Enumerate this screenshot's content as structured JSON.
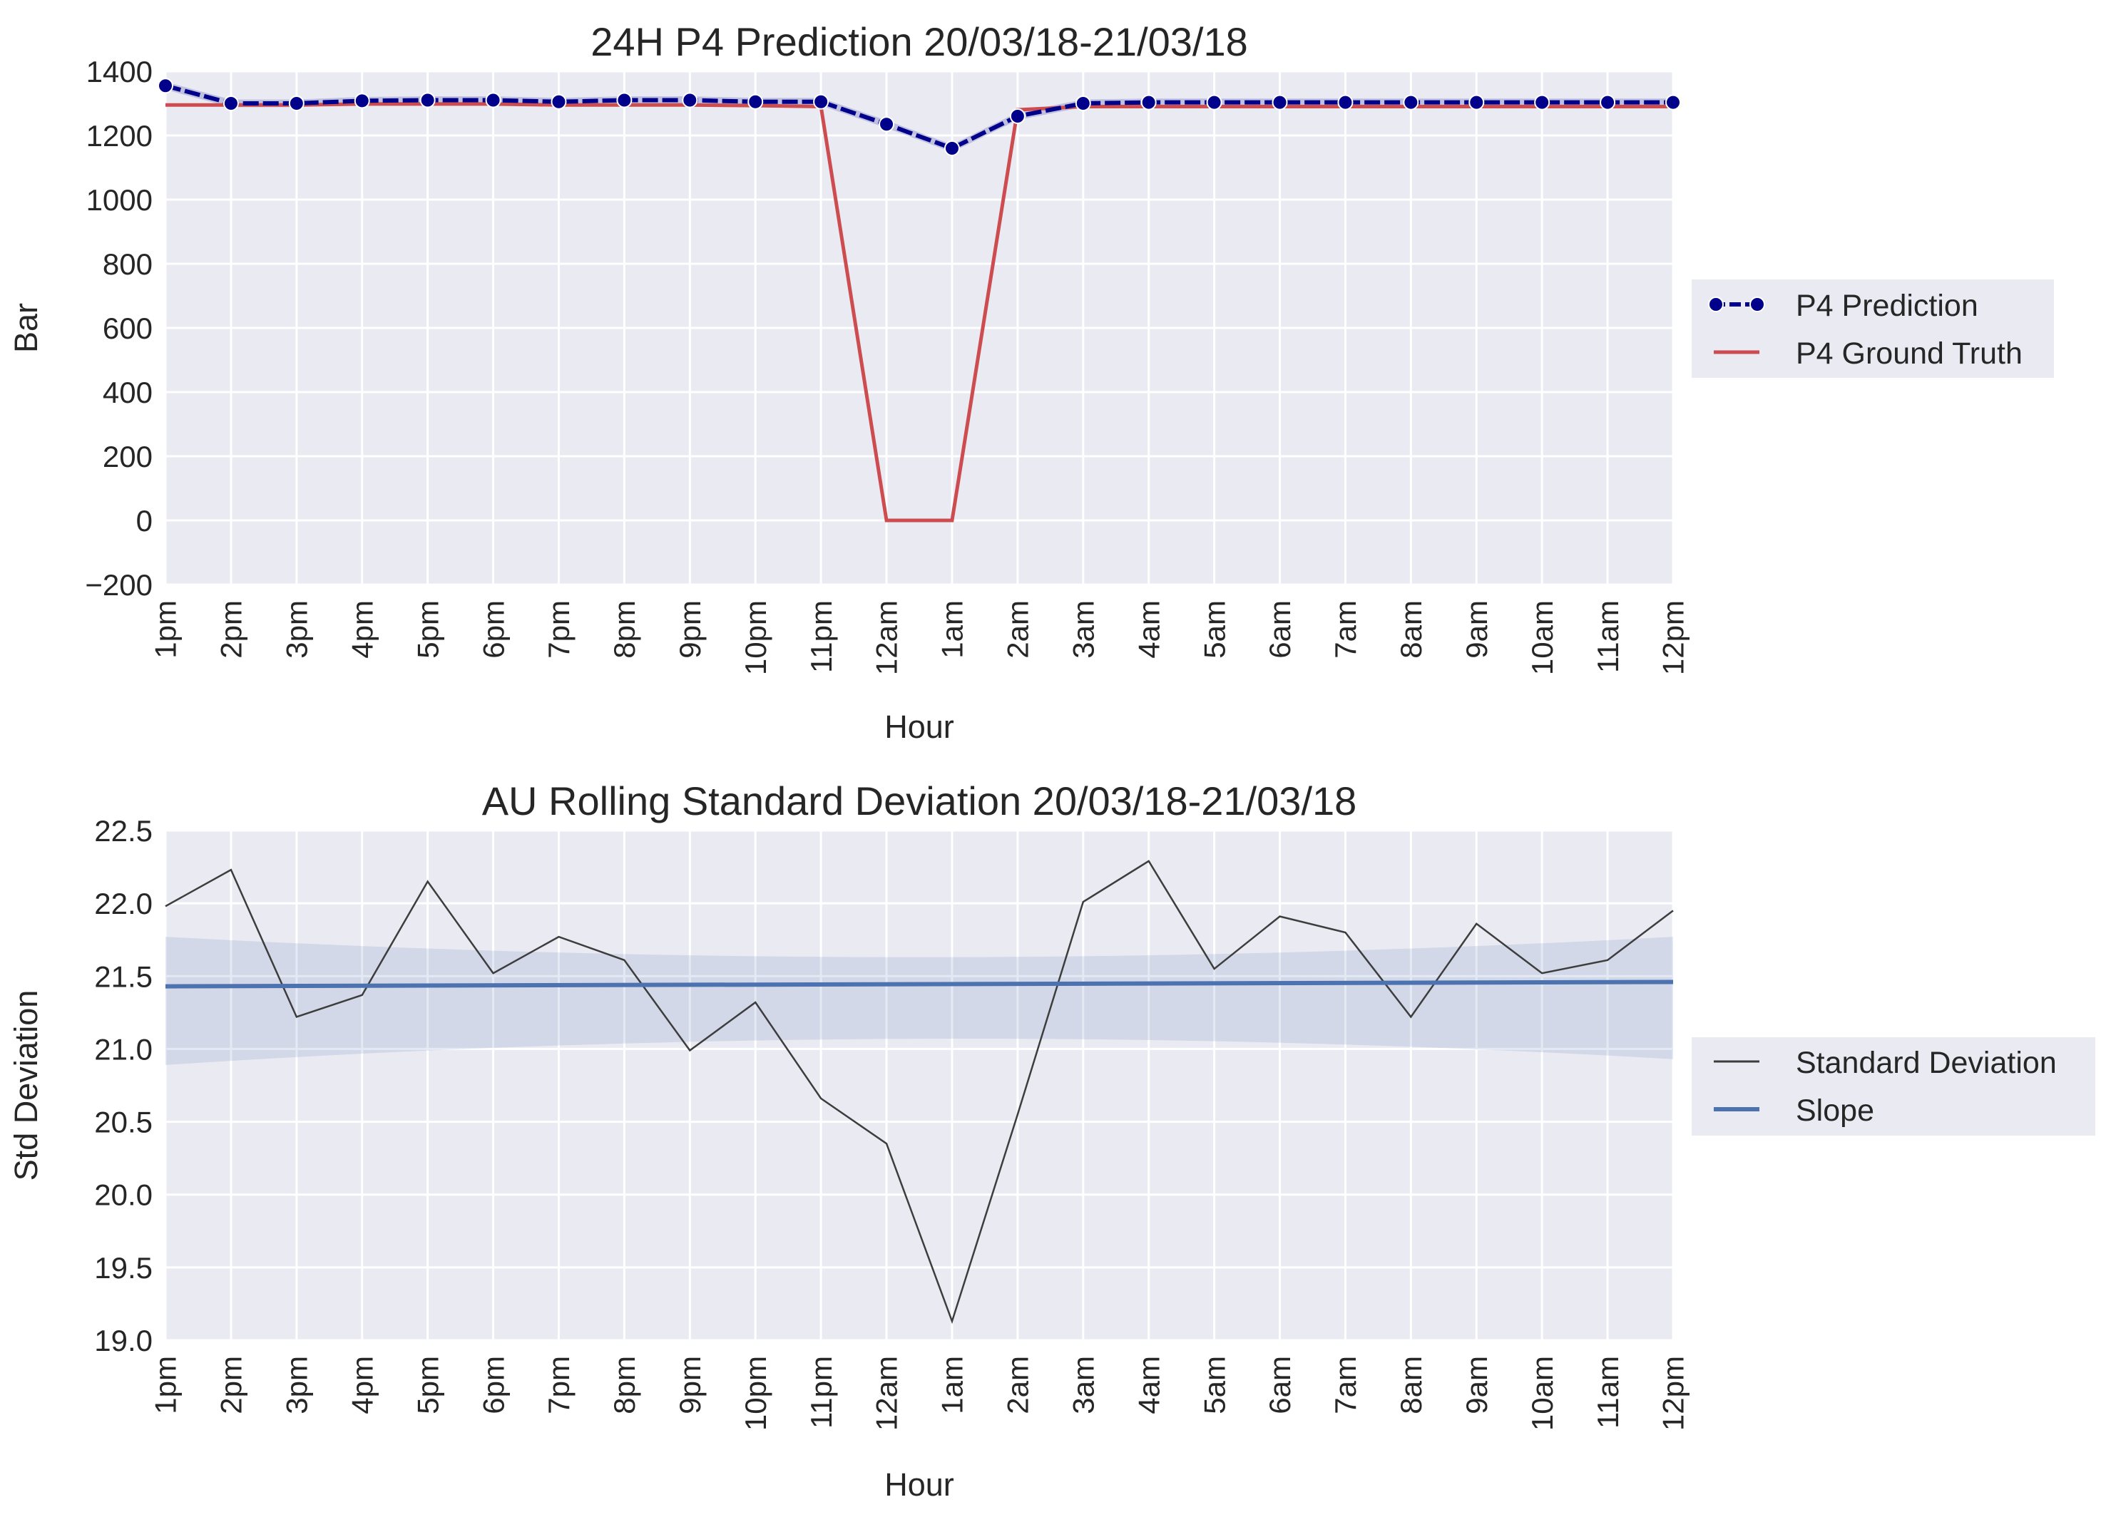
{
  "chart_data": [
    {
      "type": "line",
      "title": "24H P4 Prediction 20/03/18-21/03/18",
      "xlabel": "Hour",
      "ylabel": "Bar",
      "ylim": [
        -200,
        1400
      ],
      "yticks": [
        -200,
        0,
        200,
        400,
        600,
        800,
        1000,
        1200,
        1400
      ],
      "ytick_labels": [
        "−200",
        "0",
        "200",
        "400",
        "600",
        "800",
        "1000",
        "1200",
        "1400"
      ],
      "categories": [
        "1pm",
        "2pm",
        "3pm",
        "4pm",
        "5pm",
        "6pm",
        "7pm",
        "8pm",
        "9pm",
        "10pm",
        "11pm",
        "12am",
        "1am",
        "2am",
        "3am",
        "4am",
        "5am",
        "6am",
        "7am",
        "8am",
        "9am",
        "10am",
        "11am",
        "12pm"
      ],
      "grid": true,
      "legend_position": "right",
      "series": [
        {
          "name": "P4 Prediction",
          "color": "#00008b",
          "marker": "circle",
          "values": [
            1355,
            1300,
            1300,
            1308,
            1310,
            1310,
            1305,
            1310,
            1310,
            1305,
            1305,
            1235,
            1160,
            1260,
            1300,
            1303,
            1303,
            1303,
            1303,
            1303,
            1303,
            1303,
            1303,
            1303
          ]
        },
        {
          "name": "P4 Ground Truth",
          "color": "#cd4c50",
          "marker": "none",
          "values": [
            1295,
            1295,
            1295,
            1298,
            1298,
            1298,
            1295,
            1295,
            1295,
            1293,
            1290,
            0,
            0,
            1280,
            1290,
            1290,
            1290,
            1290,
            1290,
            1290,
            1290,
            1290,
            1290,
            1290
          ]
        }
      ]
    },
    {
      "type": "line",
      "title": "AU Rolling Standard Deviation 20/03/18-21/03/18",
      "xlabel": "Hour",
      "ylabel": "Std Deviation",
      "ylim": [
        19.0,
        22.5
      ],
      "yticks": [
        19.0,
        19.5,
        20.0,
        20.5,
        21.0,
        21.5,
        22.0,
        22.5
      ],
      "ytick_labels": [
        "19.0",
        "19.5",
        "20.0",
        "20.5",
        "21.0",
        "21.5",
        "22.0",
        "22.5"
      ],
      "categories": [
        "1pm",
        "2pm",
        "3pm",
        "4pm",
        "5pm",
        "6pm",
        "7pm",
        "8pm",
        "9pm",
        "10pm",
        "11pm",
        "12am",
        "1am",
        "2am",
        "3am",
        "4am",
        "5am",
        "6am",
        "7am",
        "8am",
        "9am",
        "10am",
        "11am",
        "12pm"
      ],
      "grid": true,
      "legend_position": "right",
      "series": [
        {
          "name": "Standard Deviation",
          "color": "#3d3d3d",
          "values": [
            21.98,
            22.23,
            21.22,
            21.37,
            22.15,
            21.52,
            21.77,
            21.61,
            20.99,
            21.32,
            20.66,
            20.35,
            19.13,
            20.55,
            22.01,
            22.29,
            21.55,
            21.91,
            21.8,
            21.22,
            21.86,
            21.52,
            21.61,
            21.95
          ]
        },
        {
          "name": "Slope",
          "color": "#4c72b0",
          "start": 21.43,
          "end": 21.46,
          "ci_lower": [
            20.89,
            21.07,
            20.93
          ],
          "ci_upper": [
            21.77,
            21.63,
            21.77
          ]
        }
      ]
    }
  ]
}
